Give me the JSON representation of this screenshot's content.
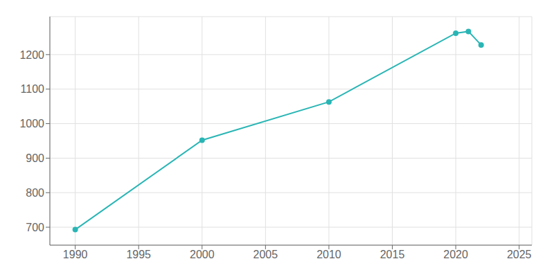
{
  "chart_data": {
    "type": "line",
    "x": [
      1990,
      2000,
      2010,
      2020,
      2021,
      2022
    ],
    "values": [
      693,
      952,
      1063,
      1262,
      1267,
      1228
    ],
    "color": "#2ab5b5",
    "marker": "circle",
    "xlim": [
      1988,
      2026
    ],
    "ylim": [
      648,
      1310
    ],
    "xticks": [
      1990,
      1995,
      2000,
      2005,
      2010,
      2015,
      2020,
      2025
    ],
    "yticks": [
      700,
      800,
      900,
      1000,
      1100,
      1200
    ],
    "grid": true
  }
}
